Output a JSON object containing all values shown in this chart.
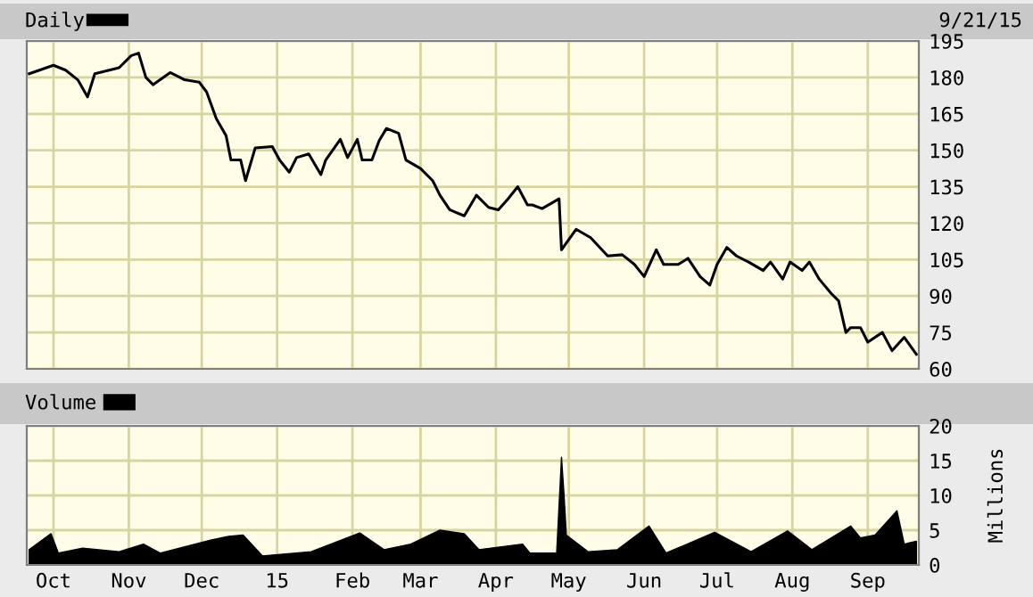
{
  "chart_data": [
    {
      "type": "line",
      "legend": "top left",
      "grid": true,
      "tick_labels": "y",
      "line_style": "solid",
      "marker": "none",
      "annotations": [
        "9/21/15"
      ],
      "xlim": [
        "2014-09-20",
        "2015-09-22"
      ],
      "xticks": [
        {
          "value": "2014-10-01",
          "label": null
        },
        {
          "value": "2014-11-01",
          "label": null
        },
        {
          "value": "2014-12-01",
          "label": null
        },
        {
          "value": "2015-01-01",
          "label": null
        },
        {
          "value": "2015-02-01",
          "label": null
        },
        {
          "value": "2015-03-01",
          "label": null
        },
        {
          "value": "2015-04-01",
          "label": null
        },
        {
          "value": "2015-05-01",
          "label": null
        },
        {
          "value": "2015-06-01",
          "label": null
        },
        {
          "value": "2015-07-01",
          "label": null
        },
        {
          "value": "2015-08-01",
          "label": null
        },
        {
          "value": "2015-09-01",
          "label": null
        }
      ],
      "ylim": [
        60,
        195
      ],
      "yticks": [
        60,
        75,
        90,
        105,
        120,
        135,
        150,
        165,
        180,
        195
      ],
      "series": [
        {
          "name": "Daily",
          "color": "#000000",
          "x": [
            "2014-09-21",
            "2014-10-01",
            "2014-10-06",
            "2014-10-11",
            "2014-10-15",
            "2014-10-18",
            "2014-10-28",
            "2014-11-02",
            "2014-11-05",
            "2014-11-08",
            "2014-11-11",
            "2014-11-18",
            "2014-11-24",
            "2014-11-30",
            "2014-12-03",
            "2014-12-07",
            "2014-12-11",
            "2014-12-13",
            "2014-12-17",
            "2014-12-19",
            "2014-12-23",
            "2014-12-30",
            "2015-01-02",
            "2015-01-06",
            "2015-01-09",
            "2015-01-14",
            "2015-01-19",
            "2015-01-21",
            "2015-01-27",
            "2015-01-30",
            "2015-02-03",
            "2015-02-05",
            "2015-02-09",
            "2015-02-12",
            "2015-02-15",
            "2015-02-20",
            "2015-02-23",
            "2015-03-01",
            "2015-03-06",
            "2015-03-09",
            "2015-03-13",
            "2015-03-19",
            "2015-03-24",
            "2015-03-29",
            "2015-04-02",
            "2015-04-06",
            "2015-04-10",
            "2015-04-14",
            "2015-04-16",
            "2015-04-20",
            "2015-04-27",
            "2015-04-28",
            "2015-05-04",
            "2015-05-10",
            "2015-05-17",
            "2015-05-23",
            "2015-05-28",
            "2015-06-01",
            "2015-06-06",
            "2015-06-09",
            "2015-06-15",
            "2015-06-19",
            "2015-06-24",
            "2015-06-28",
            "2015-07-01",
            "2015-07-05",
            "2015-07-09",
            "2015-07-14",
            "2015-07-20",
            "2015-07-23",
            "2015-07-28",
            "2015-07-31",
            "2015-08-05",
            "2015-08-08",
            "2015-08-12",
            "2015-08-17",
            "2015-08-20",
            "2015-08-23",
            "2015-08-25",
            "2015-08-29",
            "2015-09-01",
            "2015-09-07",
            "2015-09-11",
            "2015-09-16",
            "2015-09-21"
          ],
          "values": [
            181.5,
            185,
            183,
            179,
            172,
            181.5,
            184,
            189,
            190,
            180,
            177,
            182,
            179,
            178,
            174,
            163,
            156,
            146,
            146,
            137.5,
            151,
            151.5,
            146,
            141,
            147,
            148.5,
            140,
            146,
            154.5,
            147,
            154.5,
            146,
            146,
            154,
            159,
            157,
            146,
            142.5,
            137.5,
            131.5,
            125.5,
            123,
            131.5,
            126.5,
            125.5,
            130,
            135,
            127.5,
            127.5,
            126,
            130,
            109,
            117.5,
            114,
            106.5,
            107,
            103,
            98,
            109,
            103,
            103,
            105.5,
            98,
            94.5,
            103,
            110,
            106.5,
            104,
            100.5,
            104,
            97,
            104,
            100.5,
            104,
            97,
            91,
            88,
            75,
            77,
            77,
            71,
            75,
            67.5,
            73,
            66
          ]
        }
      ]
    },
    {
      "type": "area",
      "legend": "top left",
      "grid": true,
      "ylabel": "Millions",
      "xlim": [
        "2014-09-20",
        "2015-09-22"
      ],
      "xticks": [
        {
          "value": "2014-10-01",
          "label": "Oct"
        },
        {
          "value": "2014-11-01",
          "label": "Nov"
        },
        {
          "value": "2014-12-01",
          "label": "Dec"
        },
        {
          "value": "2015-01-01",
          "label": "15"
        },
        {
          "value": "2015-02-01",
          "label": "Feb"
        },
        {
          "value": "2015-03-01",
          "label": "Mar"
        },
        {
          "value": "2015-04-01",
          "label": "Apr"
        },
        {
          "value": "2015-05-01",
          "label": "May"
        },
        {
          "value": "2015-06-01",
          "label": "Jun"
        },
        {
          "value": "2015-07-01",
          "label": "Jul"
        },
        {
          "value": "2015-08-01",
          "label": "Aug"
        },
        {
          "value": "2015-09-01",
          "label": "Sep"
        }
      ],
      "ylim": [
        0,
        20
      ],
      "yticks": [
        0,
        5,
        10,
        15,
        20
      ],
      "series": [
        {
          "name": "Volume",
          "color": "#000000",
          "x": [
            "2014-09-21",
            "2014-09-30",
            "2014-10-03",
            "2014-10-13",
            "2014-10-28",
            "2014-11-07",
            "2014-11-14",
            "2014-12-05",
            "2014-12-12",
            "2014-12-18",
            "2014-12-26",
            "2015-01-15",
            "2015-02-04",
            "2015-02-14",
            "2015-02-25",
            "2015-03-09",
            "2015-03-19",
            "2015-03-25",
            "2015-04-12",
            "2015-04-15",
            "2015-04-26",
            "2015-04-28",
            "2015-04-29",
            "2015-04-30",
            "2015-05-09",
            "2015-05-21",
            "2015-06-03",
            "2015-06-10",
            "2015-06-30",
            "2015-07-15",
            "2015-07-30",
            "2015-08-09",
            "2015-08-25",
            "2015-08-29",
            "2015-09-04",
            "2015-09-13",
            "2015-09-16",
            "2015-09-21"
          ],
          "values": [
            2.2,
            4.5,
            1.7,
            2.4,
            1.9,
            3.0,
            1.7,
            3.6,
            4.1,
            4.3,
            1.3,
            1.9,
            4.6,
            2.2,
            3.0,
            5.0,
            4.5,
            2.2,
            3.0,
            1.7,
            1.7,
            15.5,
            10.3,
            4.3,
            1.9,
            2.2,
            5.6,
            1.7,
            4.7,
            1.9,
            4.9,
            2.2,
            5.6,
            3.9,
            4.3,
            7.8,
            3.0,
            3.4
          ]
        }
      ]
    }
  ]
}
